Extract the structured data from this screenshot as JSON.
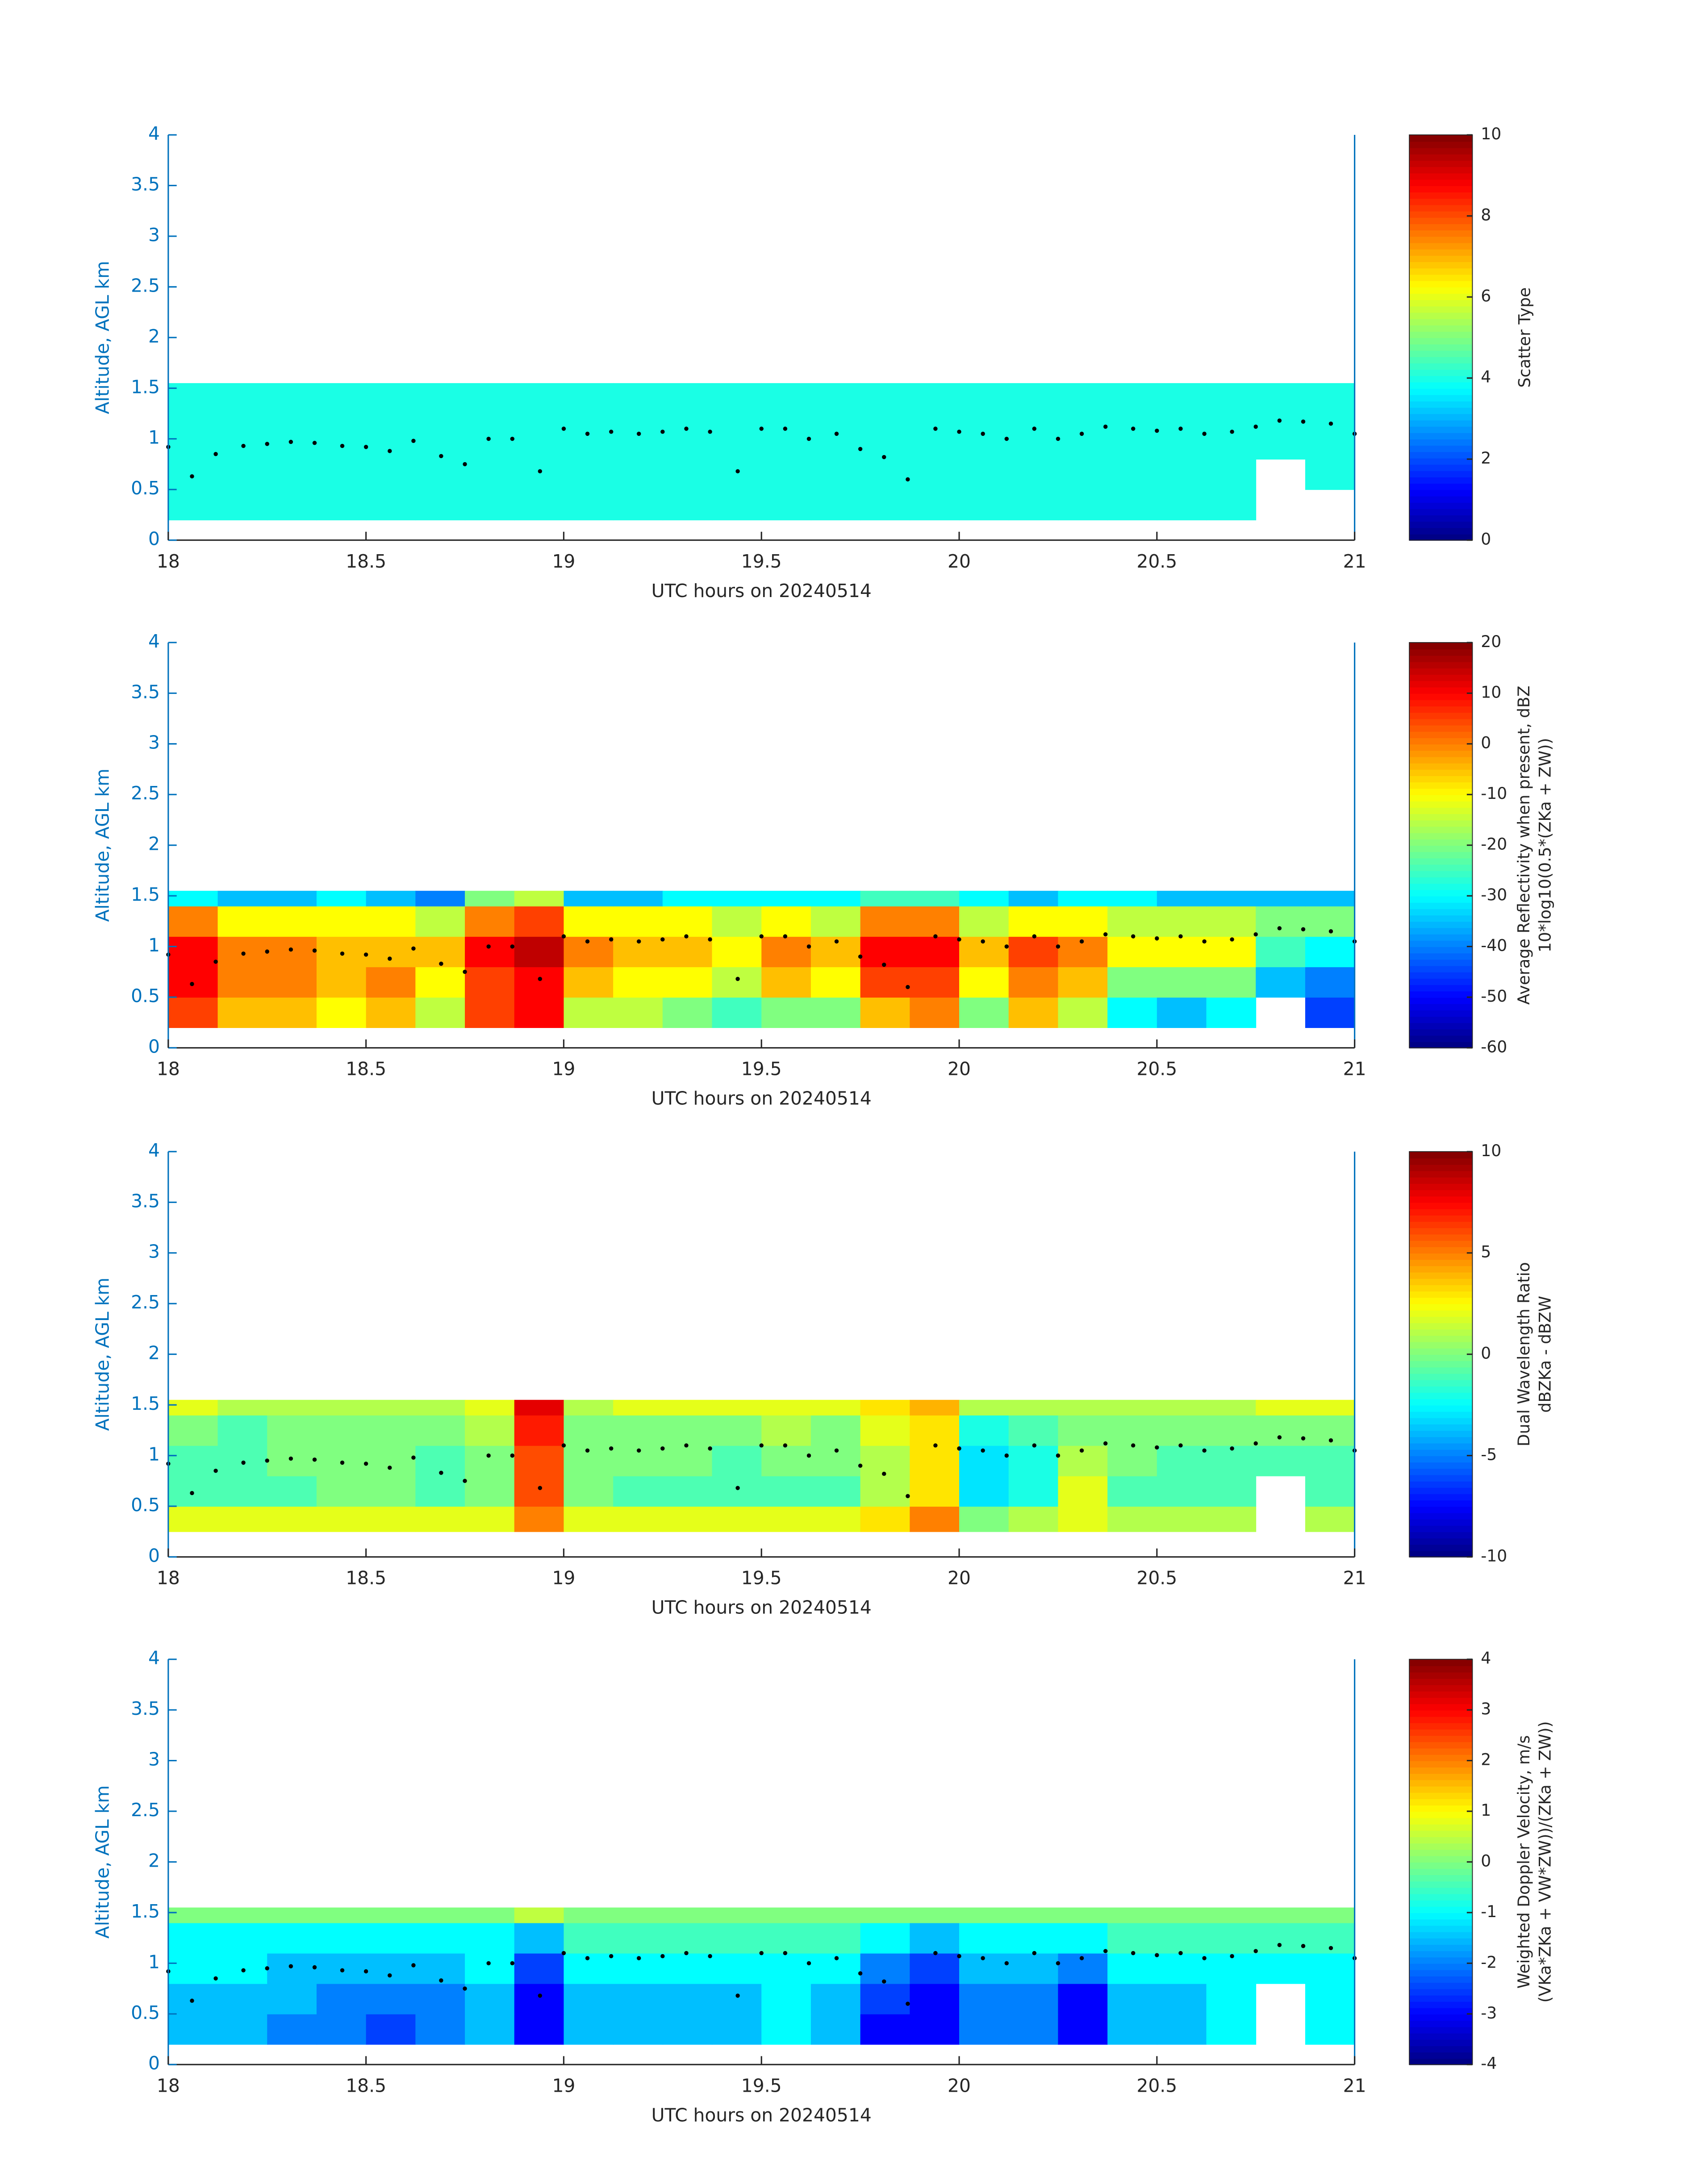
{
  "chart_data": [
    {
      "type": "heatmap",
      "xlabel": "UTC hours on 20240514",
      "ylabel": "Altitude, AGL km",
      "xlim": [
        18,
        21
      ],
      "xticks": [
        18,
        18.5,
        19,
        19.5,
        20,
        20.5,
        21
      ],
      "ylim": [
        0,
        4
      ],
      "yticks": [
        0,
        0.5,
        1,
        1.5,
        2,
        2.5,
        3,
        3.5,
        4
      ],
      "x_bins": [
        18,
        18.125,
        18.25,
        18.375,
        18.5,
        18.625,
        18.75,
        18.875,
        19,
        19.125,
        19.25,
        19.375,
        19.5,
        19.625,
        19.75,
        19.875,
        20,
        20.125,
        20.25,
        20.375,
        20.5,
        20.625,
        20.75,
        20.875,
        21
      ],
      "y_bins": [
        0.2,
        0.5,
        0.8,
        1.1,
        1.4,
        1.55
      ],
      "values": [
        [
          4,
          4,
          4,
          4,
          4,
          4,
          4,
          4,
          4,
          4,
          4,
          4,
          4,
          4,
          4,
          4,
          4,
          4,
          4,
          4,
          4,
          4,
          null,
          null
        ],
        [
          4,
          4,
          4,
          4,
          4,
          4,
          4,
          4,
          4,
          4,
          4,
          4,
          4,
          4,
          4,
          4,
          4,
          4,
          4,
          4,
          4,
          4,
          null,
          4
        ],
        [
          4,
          4,
          4,
          4,
          4,
          4,
          4,
          4,
          4,
          4,
          4,
          4,
          4,
          4,
          4,
          4,
          4,
          4,
          4,
          4,
          4,
          4,
          4,
          4
        ],
        [
          4,
          4,
          4,
          4,
          4,
          4,
          4,
          4,
          4,
          4,
          4,
          4,
          4,
          4,
          4,
          4,
          4,
          4,
          4,
          4,
          4,
          4,
          4,
          4
        ],
        [
          4,
          4,
          4,
          4,
          4,
          4,
          4,
          4,
          4,
          4,
          4,
          4,
          4,
          4,
          4,
          4,
          4,
          4,
          4,
          4,
          4,
          4,
          4,
          4
        ]
      ],
      "colormap": "jet",
      "clim": [
        0,
        10
      ],
      "cticks": [
        0,
        2,
        4,
        6,
        8,
        10
      ],
      "colorbar_label": [
        "Scatter Type"
      ],
      "series": [
        {
          "color": "#000000",
          "x": [
            18.0,
            18.06,
            18.12,
            18.19,
            18.25,
            18.31,
            18.37,
            18.44,
            18.5,
            18.56,
            18.62,
            18.69,
            18.75,
            18.81,
            18.87,
            18.94,
            19.0,
            19.06,
            19.12,
            19.19,
            19.25,
            19.31,
            19.37,
            19.44,
            19.5,
            19.56,
            19.62,
            19.69,
            19.75,
            19.81,
            19.87,
            19.94,
            20.0,
            20.06,
            20.12,
            20.19,
            20.25,
            20.31,
            20.37,
            20.44,
            20.5,
            20.56,
            20.62,
            20.69,
            20.75,
            20.81,
            20.87,
            20.94,
            21.0
          ],
          "values": [
            0.92,
            0.63,
            0.85,
            0.93,
            0.95,
            0.97,
            0.96,
            0.93,
            0.92,
            0.88,
            0.98,
            0.83,
            0.75,
            1.0,
            1.0,
            0.68,
            1.1,
            1.05,
            1.07,
            1.05,
            1.07,
            1.1,
            1.07,
            0.68,
            1.1,
            1.1,
            1.0,
            1.05,
            0.9,
            0.82,
            0.6,
            1.1,
            1.07,
            1.05,
            1.0,
            1.1,
            1.0,
            1.05,
            1.12,
            1.1,
            1.08,
            1.1,
            1.05,
            1.07,
            1.12,
            1.18,
            1.17,
            1.15,
            1.05
          ]
        }
      ]
    },
    {
      "type": "heatmap",
      "xlabel": "UTC hours on 20240514",
      "ylabel": "Altitude, AGL km",
      "xlim": [
        18,
        21
      ],
      "xticks": [
        18,
        18.5,
        19,
        19.5,
        20,
        20.5,
        21
      ],
      "ylim": [
        0,
        4
      ],
      "yticks": [
        0,
        0.5,
        1,
        1.5,
        2,
        2.5,
        3,
        3.5,
        4
      ],
      "x_bins": [
        18,
        18.125,
        18.25,
        18.375,
        18.5,
        18.625,
        18.75,
        18.875,
        19,
        19.125,
        19.25,
        19.375,
        19.5,
        19.625,
        19.75,
        19.875,
        20,
        20.125,
        20.25,
        20.375,
        20.5,
        20.625,
        20.75,
        20.875,
        21
      ],
      "y_bins": [
        0.2,
        0.5,
        0.8,
        1.1,
        1.4,
        1.55
      ],
      "values": [
        [
          5,
          -5,
          -5,
          -10,
          -5,
          -15,
          5,
          10,
          -15,
          -15,
          -20,
          -25,
          -20,
          -20,
          -5,
          0,
          -20,
          -5,
          -15,
          -30,
          -35,
          -30,
          null,
          -45
        ],
        [
          10,
          0,
          0,
          -5,
          0,
          -10,
          5,
          10,
          -5,
          -10,
          -10,
          -15,
          -5,
          -10,
          5,
          5,
          -10,
          0,
          -5,
          -20,
          -20,
          -20,
          -35,
          -40
        ],
        [
          10,
          0,
          0,
          -5,
          -5,
          -5,
          10,
          15,
          0,
          -5,
          -5,
          -10,
          0,
          -5,
          10,
          10,
          -5,
          5,
          0,
          -10,
          -10,
          -10,
          -25,
          -30
        ],
        [
          0,
          -10,
          -10,
          -10,
          -10,
          -15,
          0,
          5,
          -10,
          -10,
          -10,
          -15,
          -10,
          -15,
          0,
          0,
          -15,
          -10,
          -10,
          -15,
          -15,
          -15,
          -20,
          -20
        ],
        [
          -30,
          -35,
          -35,
          -30,
          -35,
          -40,
          -20,
          -15,
          -35,
          -35,
          -30,
          -30,
          -30,
          -30,
          -25,
          -25,
          -30,
          -35,
          -30,
          -30,
          -35,
          -35,
          -35,
          -35
        ]
      ],
      "colormap": "jet",
      "clim": [
        -60,
        20
      ],
      "cticks": [
        -60,
        -50,
        -40,
        -30,
        -20,
        -10,
        0,
        10,
        20
      ],
      "colorbar_label": [
        "Average Reflectivity when present, dBZ",
        "10*log10(0.5*(ZKa + ZW))"
      ],
      "series": [
        {
          "color": "#000000",
          "x": [
            18.0,
            18.06,
            18.12,
            18.19,
            18.25,
            18.31,
            18.37,
            18.44,
            18.5,
            18.56,
            18.62,
            18.69,
            18.75,
            18.81,
            18.87,
            18.94,
            19.0,
            19.06,
            19.12,
            19.19,
            19.25,
            19.31,
            19.37,
            19.44,
            19.5,
            19.56,
            19.62,
            19.69,
            19.75,
            19.81,
            19.87,
            19.94,
            20.0,
            20.06,
            20.12,
            20.19,
            20.25,
            20.31,
            20.37,
            20.44,
            20.5,
            20.56,
            20.62,
            20.69,
            20.75,
            20.81,
            20.87,
            20.94,
            21.0
          ],
          "values": [
            0.92,
            0.63,
            0.85,
            0.93,
            0.95,
            0.97,
            0.96,
            0.93,
            0.92,
            0.88,
            0.98,
            0.83,
            0.75,
            1.0,
            1.0,
            0.68,
            1.1,
            1.05,
            1.07,
            1.05,
            1.07,
            1.1,
            1.07,
            0.68,
            1.1,
            1.1,
            1.0,
            1.05,
            0.9,
            0.82,
            0.6,
            1.1,
            1.07,
            1.05,
            1.0,
            1.1,
            1.0,
            1.05,
            1.12,
            1.1,
            1.08,
            1.1,
            1.05,
            1.07,
            1.12,
            1.18,
            1.17,
            1.15,
            1.05
          ]
        }
      ]
    },
    {
      "type": "heatmap",
      "xlabel": "UTC hours on 20240514",
      "ylabel": "Altitude, AGL km",
      "xlim": [
        18,
        21
      ],
      "xticks": [
        18,
        18.5,
        19,
        19.5,
        20,
        20.5,
        21
      ],
      "ylim": [
        0,
        4
      ],
      "yticks": [
        0,
        0.5,
        1,
        1.5,
        2,
        2.5,
        3,
        3.5,
        4
      ],
      "x_bins": [
        18,
        18.125,
        18.25,
        18.375,
        18.5,
        18.625,
        18.75,
        18.875,
        19,
        19.125,
        19.25,
        19.375,
        19.5,
        19.625,
        19.75,
        19.875,
        20,
        20.125,
        20.25,
        20.375,
        20.5,
        20.625,
        20.75,
        20.875,
        21
      ],
      "y_bins": [
        0.25,
        0.5,
        0.8,
        1.1,
        1.4,
        1.55
      ],
      "values": [
        [
          2,
          2,
          2,
          2,
          2,
          2,
          2,
          5,
          2,
          2,
          2,
          2,
          2,
          2,
          3,
          5,
          0,
          1,
          2,
          1,
          1,
          1,
          null,
          1
        ],
        [
          -1,
          -1,
          -1,
          0,
          0,
          -1,
          0,
          6,
          0,
          -1,
          -1,
          -1,
          -1,
          -1,
          1,
          3,
          -3,
          -2,
          2,
          -1,
          -1,
          -1,
          null,
          -1
        ],
        [
          -1,
          -1,
          0,
          0,
          0,
          -1,
          0,
          6,
          0,
          0,
          0,
          -1,
          0,
          0,
          1,
          3,
          -3,
          -2,
          1,
          0,
          -1,
          -1,
          -1,
          -1
        ],
        [
          0,
          -1,
          0,
          0,
          0,
          0,
          1,
          7,
          0,
          0,
          0,
          0,
          1,
          0,
          2,
          3,
          -2,
          -1,
          0,
          0,
          0,
          0,
          0,
          0
        ],
        [
          2,
          1,
          1,
          1,
          1,
          1,
          2,
          8,
          1,
          2,
          2,
          2,
          2,
          2,
          3,
          4,
          1,
          1,
          1,
          1,
          1,
          1,
          2,
          2
        ]
      ],
      "colormap": "jet",
      "clim": [
        -10,
        10
      ],
      "cticks": [
        -10,
        -5,
        0,
        5,
        10
      ],
      "colorbar_label": [
        "Dual Wavelength Ratio",
        "dBZKa - dBZW"
      ],
      "series": [
        {
          "color": "#000000",
          "x": [
            18.0,
            18.06,
            18.12,
            18.19,
            18.25,
            18.31,
            18.37,
            18.44,
            18.5,
            18.56,
            18.62,
            18.69,
            18.75,
            18.81,
            18.87,
            18.94,
            19.0,
            19.06,
            19.12,
            19.19,
            19.25,
            19.31,
            19.37,
            19.44,
            19.5,
            19.56,
            19.62,
            19.69,
            19.75,
            19.81,
            19.87,
            19.94,
            20.0,
            20.06,
            20.12,
            20.19,
            20.25,
            20.31,
            20.37,
            20.44,
            20.5,
            20.56,
            20.62,
            20.69,
            20.75,
            20.81,
            20.87,
            20.94,
            21.0
          ],
          "values": [
            0.92,
            0.63,
            0.85,
            0.93,
            0.95,
            0.97,
            0.96,
            0.93,
            0.92,
            0.88,
            0.98,
            0.83,
            0.75,
            1.0,
            1.0,
            0.68,
            1.1,
            1.05,
            1.07,
            1.05,
            1.07,
            1.1,
            1.07,
            0.68,
            1.1,
            1.1,
            1.0,
            1.05,
            0.9,
            0.82,
            0.6,
            1.1,
            1.07,
            1.05,
            1.0,
            1.1,
            1.0,
            1.05,
            1.12,
            1.1,
            1.08,
            1.1,
            1.05,
            1.07,
            1.12,
            1.18,
            1.17,
            1.15,
            1.05
          ]
        }
      ]
    },
    {
      "type": "heatmap",
      "xlabel": "UTC hours on 20240514",
      "ylabel": "Altitude, AGL km",
      "xlim": [
        18,
        21
      ],
      "xticks": [
        18,
        18.5,
        19,
        19.5,
        20,
        20.5,
        21
      ],
      "ylim": [
        0,
        4
      ],
      "yticks": [
        0,
        0.5,
        1,
        1.5,
        2,
        2.5,
        3,
        3.5,
        4
      ],
      "x_bins": [
        18,
        18.125,
        18.25,
        18.375,
        18.5,
        18.625,
        18.75,
        18.875,
        19,
        19.125,
        19.25,
        19.375,
        19.5,
        19.625,
        19.75,
        19.875,
        20,
        20.125,
        20.25,
        20.375,
        20.5,
        20.625,
        20.75,
        20.875,
        21
      ],
      "y_bins": [
        0.2,
        0.5,
        0.8,
        1.1,
        1.4,
        1.55
      ],
      "values": [
        [
          -1.5,
          -1.5,
          -2,
          -2,
          -2.5,
          -2,
          -1.5,
          -3,
          -1.5,
          -1.5,
          -1.5,
          -1.5,
          -1,
          -1.5,
          -3,
          -3,
          -2,
          -2,
          -3,
          -1.5,
          -1.5,
          -1,
          null,
          -1
        ],
        [
          -1.5,
          -1.5,
          -1.5,
          -2,
          -2,
          -2,
          -1.5,
          -3,
          -1.5,
          -1.5,
          -1.5,
          -1.5,
          -1,
          -1.5,
          -2.5,
          -3,
          -2,
          -2,
          -3,
          -1.5,
          -1.5,
          -1,
          null,
          -1
        ],
        [
          -1,
          -1,
          -1.5,
          -1.5,
          -1.5,
          -1.5,
          -1,
          -2.5,
          -1,
          -1,
          -1,
          -1,
          -1,
          -1,
          -2,
          -2.5,
          -1.5,
          -1.5,
          -2,
          -1,
          -1,
          -1,
          -1,
          -1
        ],
        [
          -1,
          -1,
          -1,
          -1,
          -1,
          -1,
          -1,
          -1.5,
          -0.5,
          -0.5,
          -0.5,
          -0.5,
          -0.5,
          -0.5,
          -1,
          -1.5,
          -1,
          -1,
          -1,
          -0.5,
          -0.5,
          -0.5,
          -0.5,
          -0.5
        ],
        [
          0,
          0,
          0,
          0,
          0,
          0,
          0,
          0.5,
          0,
          0,
          0,
          0,
          0,
          0,
          0,
          0,
          0,
          0,
          0,
          0,
          0,
          0,
          0,
          0
        ]
      ],
      "colormap": "jet",
      "clim": [
        -4,
        4
      ],
      "cticks": [
        -4,
        -3,
        -2,
        -1,
        0,
        1,
        2,
        3,
        4
      ],
      "colorbar_label": [
        "Weighted Doppler Velocity, m/s",
        "(VKa*ZKa + VW*ZW))/(ZKa + ZW))"
      ],
      "series": [
        {
          "color": "#000000",
          "x": [
            18.0,
            18.06,
            18.12,
            18.19,
            18.25,
            18.31,
            18.37,
            18.44,
            18.5,
            18.56,
            18.62,
            18.69,
            18.75,
            18.81,
            18.87,
            18.94,
            19.0,
            19.06,
            19.12,
            19.19,
            19.25,
            19.31,
            19.37,
            19.44,
            19.5,
            19.56,
            19.62,
            19.69,
            19.75,
            19.81,
            19.87,
            19.94,
            20.0,
            20.06,
            20.12,
            20.19,
            20.25,
            20.31,
            20.37,
            20.44,
            20.5,
            20.56,
            20.62,
            20.69,
            20.75,
            20.81,
            20.87,
            20.94,
            21.0
          ],
          "values": [
            0.92,
            0.63,
            0.85,
            0.93,
            0.95,
            0.97,
            0.96,
            0.93,
            0.92,
            0.88,
            0.98,
            0.83,
            0.75,
            1.0,
            1.0,
            0.68,
            1.1,
            1.05,
            1.07,
            1.05,
            1.07,
            1.1,
            1.07,
            0.68,
            1.1,
            1.1,
            1.0,
            1.05,
            0.9,
            0.82,
            0.6,
            1.1,
            1.07,
            1.05,
            1.0,
            1.1,
            1.0,
            1.05,
            1.12,
            1.1,
            1.08,
            1.1,
            1.05,
            1.07,
            1.12,
            1.18,
            1.17,
            1.15,
            1.05
          ]
        }
      ]
    }
  ]
}
